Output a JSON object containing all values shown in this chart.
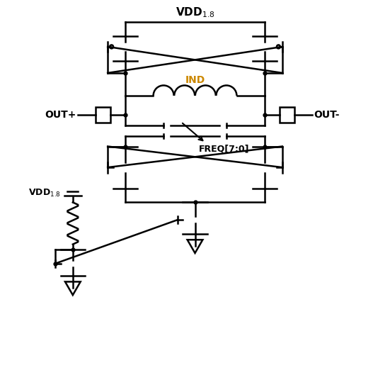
{
  "bg_color": "#ffffff",
  "line_color": "#000000",
  "ind_label_color": "#cc8800",
  "lw": 1.8,
  "fig_width": 5.51,
  "fig_height": 5.29,
  "dpi": 100,
  "ind_label": "IND",
  "freq_label": "FREQ[7:0]",
  "out_plus": "OUT+",
  "out_minus": "OUT-",
  "vdd_top": "VDD",
  "vdd_sub_top": "1.8",
  "vdd_bias": "VDD",
  "vdd_sub_bias": "1.8"
}
